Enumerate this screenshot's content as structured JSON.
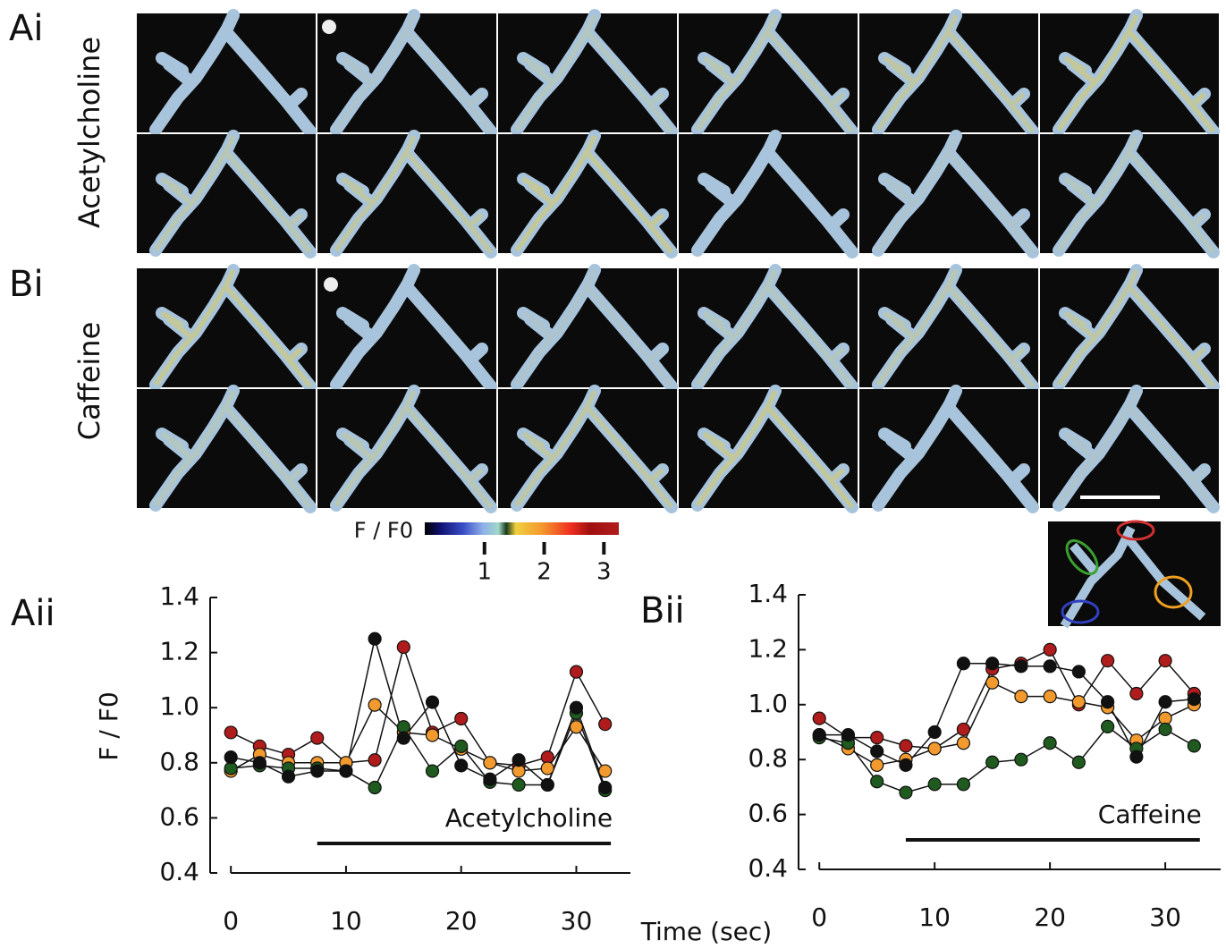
{
  "figure": {
    "panel_a_label": "Ai",
    "panel_a_name": "Acetylcholine",
    "panel_b_label": "Bi",
    "panel_b_name": "Caffeine"
  },
  "colorbar": {
    "label": "F / F0",
    "clim": [
      0,
      3.25
    ],
    "ticks": [
      1,
      2,
      3
    ]
  },
  "chart_data": [
    {
      "type": "line",
      "label": "Aii",
      "ylabel": "F / F0",
      "xlabel": "Time (sec)",
      "annotation": "Acetylcholine",
      "stimulus": [
        7.5,
        33
      ],
      "x": [
        0,
        2.5,
        5,
        7.5,
        10,
        12.5,
        15,
        17.5,
        20,
        22.5,
        25,
        27.5,
        30,
        32.5
      ],
      "xlim": [
        -1.8,
        34.7
      ],
      "ylim": [
        0.4,
        1.4
      ],
      "xticks": [
        0,
        10,
        20,
        30
      ],
      "yticks": [
        0.4,
        0.6,
        0.8,
        {
          "value": 1,
          "label": "1.0"
        },
        1.2,
        1.4
      ],
      "series": [
        {
          "color": "#b01c1c",
          "values": [
            0.91,
            0.86,
            0.83,
            0.89,
            0.8,
            0.81,
            1.22,
            0.91,
            0.96,
            0.8,
            0.79,
            0.82,
            1.13,
            0.94
          ]
        },
        {
          "color": "#f39a2e",
          "values": [
            0.77,
            0.83,
            0.8,
            0.8,
            0.8,
            1.01,
            0.91,
            0.9,
            0.85,
            0.8,
            0.77,
            0.78,
            0.93,
            0.77
          ]
        },
        {
          "color": "#1f5a1f",
          "values": [
            0.78,
            0.79,
            0.78,
            0.78,
            0.77,
            0.71,
            0.93,
            0.77,
            0.86,
            0.73,
            0.72,
            0.72,
            0.98,
            0.7
          ]
        },
        {
          "color": "#111111",
          "values": [
            0.82,
            0.8,
            0.75,
            0.77,
            0.77,
            1.25,
            0.89,
            1.02,
            0.79,
            0.74,
            0.81,
            0.72,
            1.0,
            0.71
          ]
        }
      ]
    },
    {
      "type": "line",
      "label": "Bii",
      "annotation": "Caffeine",
      "stimulus": [
        7.5,
        33
      ],
      "x": [
        0,
        2.5,
        5,
        7.5,
        10,
        12.5,
        15,
        17.5,
        20,
        22.5,
        25,
        27.5,
        30,
        32.5
      ],
      "xlim": [
        -1.8,
        34.8
      ],
      "ylim": [
        0.4,
        1.4
      ],
      "xticks": [
        0,
        10,
        20,
        30
      ],
      "yticks": [
        0.4,
        0.6,
        0.8,
        {
          "value": 1,
          "label": "1.0"
        },
        1.2,
        1.4
      ],
      "series": [
        {
          "color": "#b01c1c",
          "values": [
            0.95,
            0.88,
            0.88,
            0.85,
            0.84,
            0.91,
            1.13,
            1.15,
            1.2,
            1.0,
            1.16,
            1.04,
            1.16,
            1.04
          ]
        },
        {
          "color": "#f39a2e",
          "values": [
            0.89,
            0.84,
            0.78,
            0.8,
            0.84,
            0.86,
            1.08,
            1.03,
            1.03,
            1.01,
            0.99,
            0.87,
            0.95,
            1.0
          ]
        },
        {
          "color": "#1f5a1f",
          "values": [
            0.88,
            0.86,
            0.72,
            0.68,
            0.71,
            0.71,
            0.79,
            0.8,
            0.86,
            0.79,
            0.92,
            0.84,
            0.91,
            0.85
          ]
        },
        {
          "color": "#111111",
          "values": [
            0.89,
            0.89,
            0.83,
            0.78,
            0.9,
            1.15,
            1.15,
            1.14,
            1.14,
            1.12,
            1.01,
            0.81,
            1.01,
            1.02
          ]
        }
      ]
    }
  ]
}
